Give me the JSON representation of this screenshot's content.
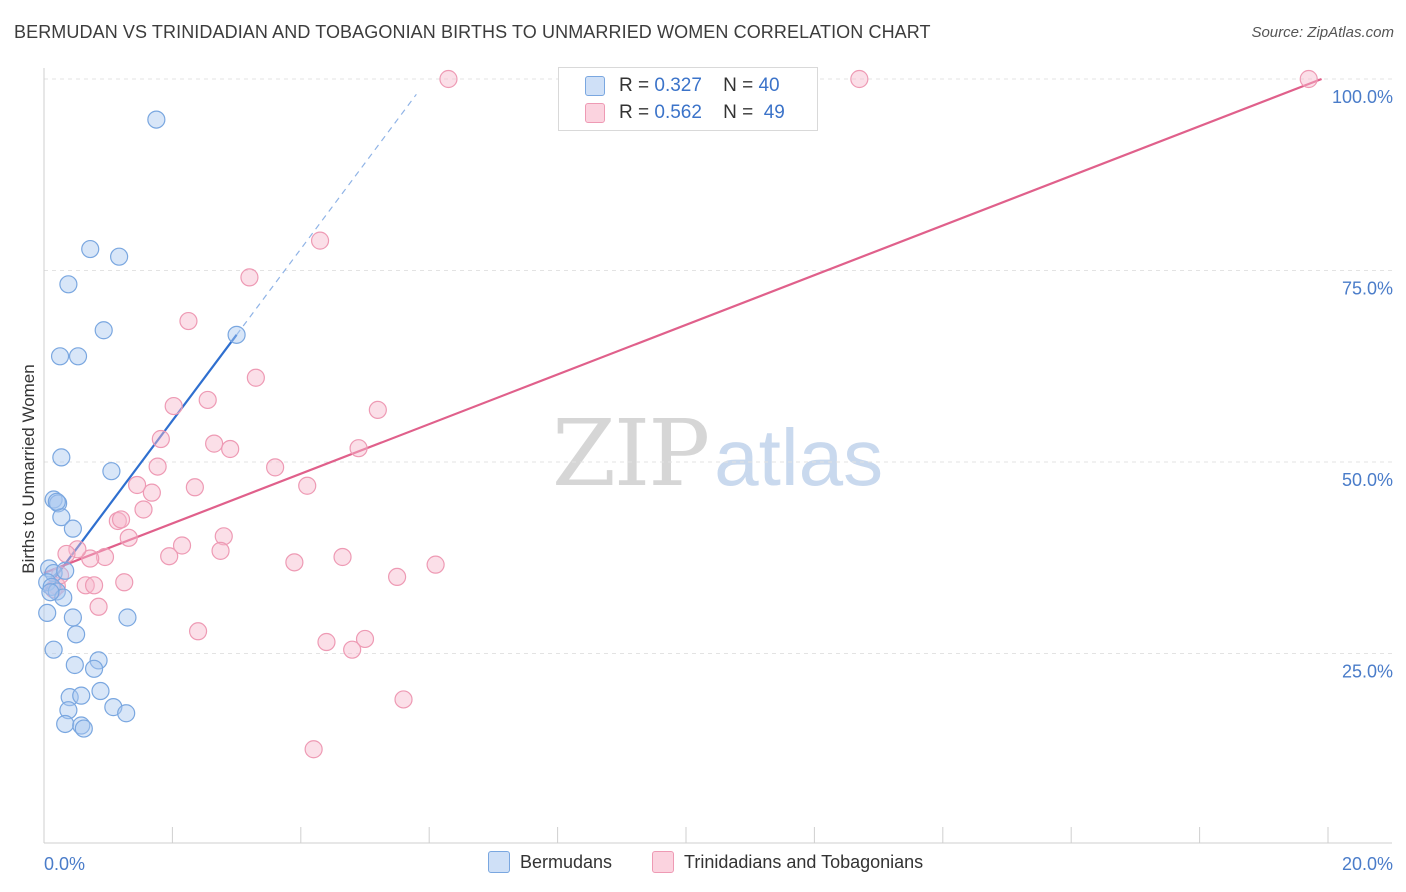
{
  "title": "BERMUDAN VS TRINIDADIAN AND TOBAGONIAN BIRTHS TO UNMARRIED WOMEN CORRELATION CHART",
  "source": "Source: ZipAtlas.com",
  "watermark": {
    "zip": "ZIP",
    "atlas": "atlas"
  },
  "legend_top": [
    {
      "r_label": "R =",
      "r_value": "0.327",
      "n_label": "N =",
      "n_value": "40",
      "color": "#a9c8f0"
    },
    {
      "r_label": "R =",
      "r_value": "0.562",
      "n_label": "N =",
      "n_value": "49",
      "color": "#f7b8cc"
    }
  ],
  "chart_data": {
    "type": "scatter",
    "title": "BERMUDAN VS TRINIDADIAN AND TOBAGONIAN BIRTHS TO UNMARRIED WOMEN CORRELATION CHART",
    "xlabel": "",
    "ylabel": "Births to Unmarried Women",
    "xlim": [
      0,
      20
    ],
    "ylim": [
      0,
      105
    ],
    "x_tick_labels": [
      {
        "value": 0,
        "label": "0.0%"
      },
      {
        "value": 20,
        "label": "20.0%"
      }
    ],
    "y_tick_labels": [
      {
        "value": 25,
        "label": "25.0%"
      },
      {
        "value": 50,
        "label": "50.0%"
      },
      {
        "value": 75,
        "label": "75.0%"
      },
      {
        "value": 100,
        "label": "100.0%"
      }
    ],
    "series": [
      {
        "name": "Bermudans",
        "color": "#a9c8f0",
        "stroke": "#7aa7e0",
        "trend_color": "#2f6fcf",
        "trend": {
          "x0": 0.0,
          "y0": 33.0,
          "x1": 3.0,
          "y1": 66.6,
          "dash_to_x": 5.8,
          "dash_to_y": 98.0
        },
        "points": [
          [
            1.75,
            94.7
          ],
          [
            0.72,
            77.8
          ],
          [
            1.17,
            76.8
          ],
          [
            0.38,
            73.2
          ],
          [
            0.93,
            67.2
          ],
          [
            0.25,
            63.8
          ],
          [
            0.53,
            63.8
          ],
          [
            3.0,
            66.6
          ],
          [
            0.27,
            50.6
          ],
          [
            1.05,
            48.8
          ],
          [
            0.15,
            45.1
          ],
          [
            0.22,
            44.6
          ],
          [
            0.27,
            42.8
          ],
          [
            0.45,
            41.3
          ],
          [
            0.08,
            36.1
          ],
          [
            0.15,
            35.5
          ],
          [
            0.33,
            35.8
          ],
          [
            0.05,
            34.3
          ],
          [
            0.12,
            33.7
          ],
          [
            0.2,
            33.1
          ],
          [
            0.3,
            32.3
          ],
          [
            0.05,
            30.3
          ],
          [
            0.45,
            29.7
          ],
          [
            1.3,
            29.7
          ],
          [
            0.5,
            27.5
          ],
          [
            0.15,
            25.5
          ],
          [
            0.85,
            24.1
          ],
          [
            0.48,
            23.5
          ],
          [
            0.78,
            23.0
          ],
          [
            0.4,
            19.3
          ],
          [
            0.58,
            19.5
          ],
          [
            0.88,
            20.1
          ],
          [
            0.38,
            17.6
          ],
          [
            1.08,
            18.0
          ],
          [
            1.28,
            17.2
          ],
          [
            0.33,
            15.8
          ],
          [
            0.58,
            15.6
          ],
          [
            0.62,
            15.2
          ],
          [
            0.2,
            44.8
          ],
          [
            0.1,
            33.0
          ]
        ]
      },
      {
        "name": "Trinidadians and Tobagonians",
        "color": "#f7b8cc",
        "stroke": "#ee9ab4",
        "trend_color": "#e0608b",
        "trend": {
          "x0": 0.0,
          "y0": 35.5,
          "x1": 19.9,
          "y1": 100.0
        },
        "points": [
          [
            6.3,
            100.0
          ],
          [
            12.7,
            100.0
          ],
          [
            19.7,
            100.0
          ],
          [
            4.3,
            78.9
          ],
          [
            3.2,
            74.1
          ],
          [
            2.25,
            68.4
          ],
          [
            3.3,
            61.0
          ],
          [
            5.2,
            56.8
          ],
          [
            2.02,
            57.3
          ],
          [
            2.55,
            58.1
          ],
          [
            1.82,
            53.0
          ],
          [
            2.65,
            52.4
          ],
          [
            2.9,
            51.7
          ],
          [
            4.9,
            51.8
          ],
          [
            1.77,
            49.4
          ],
          [
            3.6,
            49.3
          ],
          [
            1.45,
            47.0
          ],
          [
            2.35,
            46.7
          ],
          [
            4.1,
            46.9
          ],
          [
            1.68,
            46.0
          ],
          [
            1.55,
            43.8
          ],
          [
            1.15,
            42.3
          ],
          [
            1.2,
            42.5
          ],
          [
            1.32,
            40.1
          ],
          [
            2.15,
            39.1
          ],
          [
            2.8,
            40.3
          ],
          [
            2.75,
            38.4
          ],
          [
            1.95,
            37.7
          ],
          [
            0.95,
            37.6
          ],
          [
            0.72,
            37.4
          ],
          [
            4.65,
            37.6
          ],
          [
            3.9,
            36.9
          ],
          [
            6.1,
            36.6
          ],
          [
            0.52,
            38.6
          ],
          [
            0.35,
            38.0
          ],
          [
            0.65,
            33.9
          ],
          [
            0.2,
            33.8
          ],
          [
            1.25,
            34.3
          ],
          [
            0.25,
            35.2
          ],
          [
            0.15,
            33.4
          ],
          [
            5.5,
            35.0
          ],
          [
            0.85,
            31.1
          ],
          [
            2.4,
            27.9
          ],
          [
            5.0,
            26.9
          ],
          [
            4.4,
            26.5
          ],
          [
            4.8,
            25.5
          ],
          [
            5.6,
            19.0
          ],
          [
            4.2,
            12.5
          ],
          [
            0.78,
            33.9
          ]
        ]
      }
    ]
  },
  "legend_bottom": [
    {
      "label": "Bermudans",
      "color": "#a9c8f0"
    },
    {
      "label": "Trinidadians and Tobagonians",
      "color": "#f7b8cc"
    }
  ]
}
